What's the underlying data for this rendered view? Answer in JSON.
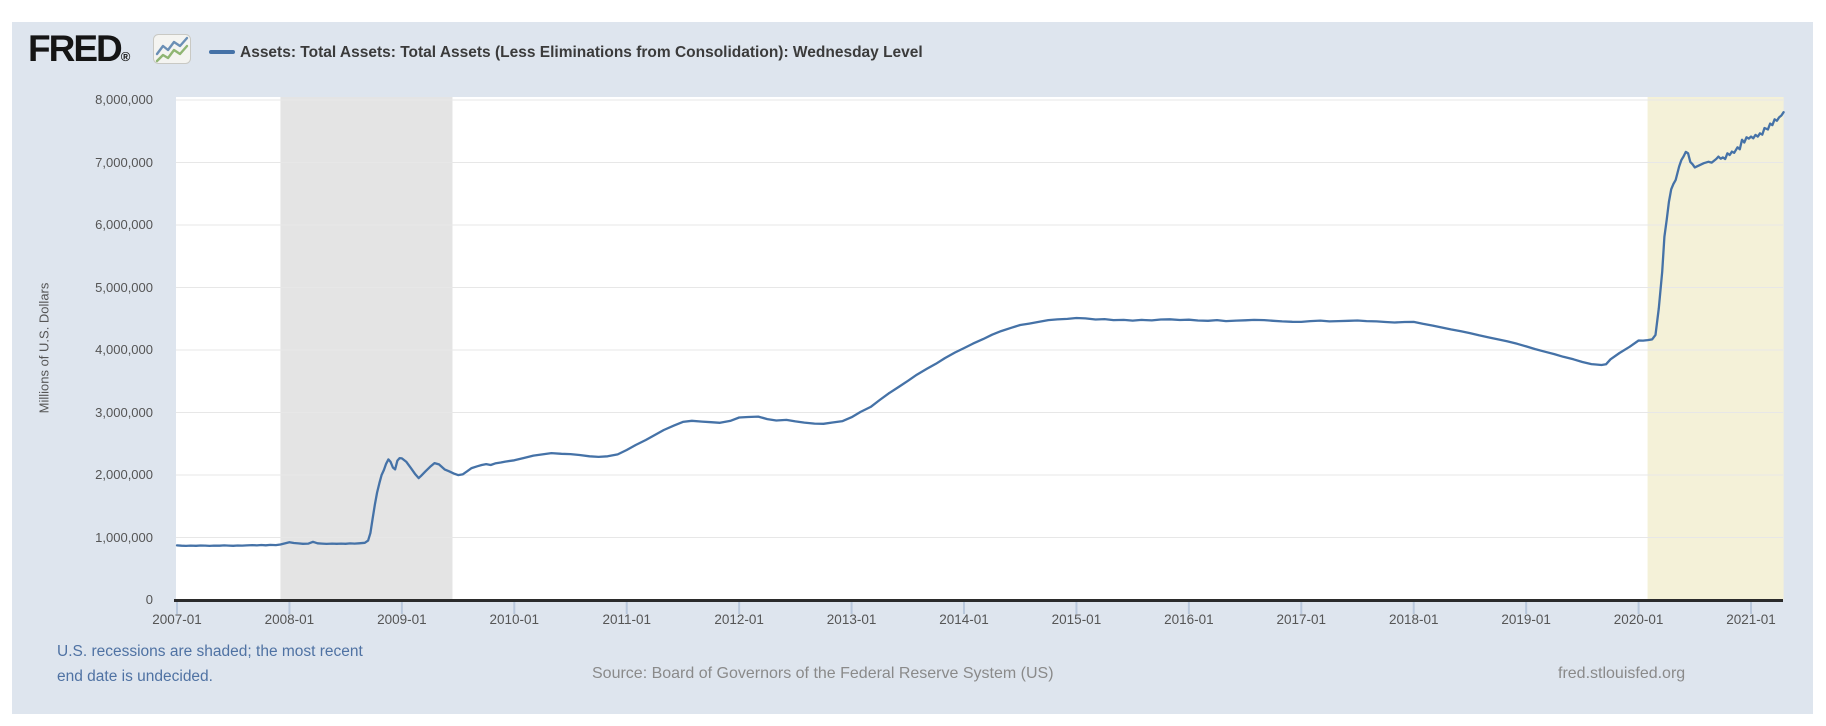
{
  "header": {
    "logo_text": "FRED",
    "logo_mark": "®",
    "legend": {
      "marker": "series-line-swatch",
      "label": "Assets: Total Assets: Total Assets (Less Eliminations from Consolidation): Wednesday Level"
    }
  },
  "footer": {
    "recession_note_line1": "U.S. recessions are shaded; the most recent",
    "recession_note_line2": "end date is undecided.",
    "source": "Source: Board of Governors of the Federal Reserve System (US)",
    "site": "fred.stlouisfed.org"
  },
  "colors": {
    "panel_bg": "#dee5ee",
    "plot_bg": "#ffffff",
    "grid": "#e7e7e7",
    "axis": "#2b2b2b",
    "tick": "#b9c8dc",
    "line": "#4572a7",
    "recession_gray": "#e4e4e4",
    "recession_yellow": "#f4f1d8",
    "note_blue": "#4f72a3"
  },
  "chart_data": {
    "type": "line",
    "title": "Assets: Total Assets: Total Assets (Less Eliminations from Consolidation): Wednesday Level",
    "xlabel": "",
    "ylabel": "Millions of U.S. Dollars",
    "ylim": [
      0,
      8000000
    ],
    "xlim_years": [
      2007.0,
      2021.29
    ],
    "grid": "horizontal",
    "legend_position": "top-left",
    "y_tick_labels": [
      "0",
      "1,000,000",
      "2,000,000",
      "3,000,000",
      "4,000,000",
      "5,000,000",
      "6,000,000",
      "7,000,000",
      "8,000,000"
    ],
    "x_ticks": [
      "2007-01",
      "2008-01",
      "2009-01",
      "2010-01",
      "2011-01",
      "2012-01",
      "2013-01",
      "2014-01",
      "2015-01",
      "2016-01",
      "2017-01",
      "2018-01",
      "2019-01",
      "2020-01",
      "2021-01"
    ],
    "shaded_regions": [
      {
        "name": "recession-2007-2009",
        "from": 2007.92,
        "to": 2009.45,
        "color_key": "recession_gray"
      },
      {
        "name": "recession-2020-undecided",
        "from": 2020.08,
        "to": 2021.29,
        "color_key": "recession_yellow"
      }
    ],
    "series": [
      {
        "name": "Assets: Total Assets: Total Assets (Less Eliminations from Consolidation): Wednesday Level",
        "units": "Millions of U.S. Dollars",
        "color_key": "line",
        "points": [
          [
            2007.0,
            873000
          ],
          [
            2007.04,
            869000
          ],
          [
            2007.08,
            866000
          ],
          [
            2007.12,
            871000
          ],
          [
            2007.17,
            868000
          ],
          [
            2007.21,
            872000
          ],
          [
            2007.25,
            870000
          ],
          [
            2007.29,
            866000
          ],
          [
            2007.33,
            871000
          ],
          [
            2007.38,
            869000
          ],
          [
            2007.42,
            873000
          ],
          [
            2007.46,
            870000
          ],
          [
            2007.5,
            868000
          ],
          [
            2007.54,
            872000
          ],
          [
            2007.58,
            870000
          ],
          [
            2007.62,
            874000
          ],
          [
            2007.67,
            878000
          ],
          [
            2007.71,
            874000
          ],
          [
            2007.75,
            880000
          ],
          [
            2007.79,
            876000
          ],
          [
            2007.83,
            882000
          ],
          [
            2007.88,
            879000
          ],
          [
            2007.92,
            888000
          ],
          [
            2008.0,
            925000
          ],
          [
            2008.04,
            912000
          ],
          [
            2008.08,
            906000
          ],
          [
            2008.12,
            900000
          ],
          [
            2008.17,
            903000
          ],
          [
            2008.21,
            932000
          ],
          [
            2008.25,
            908000
          ],
          [
            2008.29,
            902000
          ],
          [
            2008.33,
            898000
          ],
          [
            2008.38,
            902000
          ],
          [
            2008.42,
            899000
          ],
          [
            2008.46,
            903000
          ],
          [
            2008.5,
            900000
          ],
          [
            2008.54,
            905000
          ],
          [
            2008.58,
            903000
          ],
          [
            2008.62,
            908000
          ],
          [
            2008.67,
            915000
          ],
          [
            2008.7,
            950000
          ],
          [
            2008.72,
            1070000
          ],
          [
            2008.74,
            1300000
          ],
          [
            2008.76,
            1530000
          ],
          [
            2008.78,
            1720000
          ],
          [
            2008.8,
            1870000
          ],
          [
            2008.82,
            2000000
          ],
          [
            2008.84,
            2080000
          ],
          [
            2008.86,
            2180000
          ],
          [
            2008.88,
            2250000
          ],
          [
            2008.9,
            2210000
          ],
          [
            2008.92,
            2120000
          ],
          [
            2008.94,
            2090000
          ],
          [
            2008.96,
            2230000
          ],
          [
            2008.98,
            2270000
          ],
          [
            2009.0,
            2265000
          ],
          [
            2009.04,
            2210000
          ],
          [
            2009.08,
            2110000
          ],
          [
            2009.12,
            2010000
          ],
          [
            2009.15,
            1950000
          ],
          [
            2009.17,
            1985000
          ],
          [
            2009.21,
            2060000
          ],
          [
            2009.25,
            2130000
          ],
          [
            2009.29,
            2190000
          ],
          [
            2009.33,
            2170000
          ],
          [
            2009.38,
            2090000
          ],
          [
            2009.42,
            2060000
          ],
          [
            2009.46,
            2025000
          ],
          [
            2009.5,
            1998000
          ],
          [
            2009.54,
            2010000
          ],
          [
            2009.58,
            2060000
          ],
          [
            2009.62,
            2110000
          ],
          [
            2009.67,
            2140000
          ],
          [
            2009.71,
            2160000
          ],
          [
            2009.75,
            2175000
          ],
          [
            2009.79,
            2160000
          ],
          [
            2009.83,
            2185000
          ],
          [
            2009.88,
            2200000
          ],
          [
            2009.92,
            2215000
          ],
          [
            2010.0,
            2235000
          ],
          [
            2010.08,
            2270000
          ],
          [
            2010.17,
            2310000
          ],
          [
            2010.25,
            2330000
          ],
          [
            2010.33,
            2350000
          ],
          [
            2010.42,
            2340000
          ],
          [
            2010.5,
            2335000
          ],
          [
            2010.58,
            2320000
          ],
          [
            2010.67,
            2300000
          ],
          [
            2010.75,
            2290000
          ],
          [
            2010.83,
            2300000
          ],
          [
            2010.92,
            2330000
          ],
          [
            2011.0,
            2400000
          ],
          [
            2011.08,
            2480000
          ],
          [
            2011.17,
            2560000
          ],
          [
            2011.25,
            2640000
          ],
          [
            2011.33,
            2720000
          ],
          [
            2011.42,
            2790000
          ],
          [
            2011.5,
            2850000
          ],
          [
            2011.58,
            2868000
          ],
          [
            2011.67,
            2855000
          ],
          [
            2011.75,
            2845000
          ],
          [
            2011.83,
            2835000
          ],
          [
            2011.92,
            2865000
          ],
          [
            2012.0,
            2920000
          ],
          [
            2012.08,
            2928000
          ],
          [
            2012.17,
            2935000
          ],
          [
            2012.25,
            2895000
          ],
          [
            2012.33,
            2872000
          ],
          [
            2012.42,
            2882000
          ],
          [
            2012.5,
            2858000
          ],
          [
            2012.58,
            2838000
          ],
          [
            2012.67,
            2822000
          ],
          [
            2012.75,
            2820000
          ],
          [
            2012.83,
            2840000
          ],
          [
            2012.92,
            2862000
          ],
          [
            2013.0,
            2925000
          ],
          [
            2013.08,
            3010000
          ],
          [
            2013.17,
            3090000
          ],
          [
            2013.25,
            3200000
          ],
          [
            2013.33,
            3305000
          ],
          [
            2013.42,
            3410000
          ],
          [
            2013.5,
            3505000
          ],
          [
            2013.58,
            3605000
          ],
          [
            2013.67,
            3700000
          ],
          [
            2013.75,
            3780000
          ],
          [
            2013.83,
            3870000
          ],
          [
            2013.92,
            3960000
          ],
          [
            2014.0,
            4030000
          ],
          [
            2014.08,
            4102000
          ],
          [
            2014.17,
            4175000
          ],
          [
            2014.25,
            4245000
          ],
          [
            2014.33,
            4302000
          ],
          [
            2014.42,
            4355000
          ],
          [
            2014.5,
            4400000
          ],
          [
            2014.58,
            4422000
          ],
          [
            2014.67,
            4452000
          ],
          [
            2014.75,
            4478000
          ],
          [
            2014.83,
            4490000
          ],
          [
            2014.92,
            4498000
          ],
          [
            2015.0,
            4512000
          ],
          [
            2015.08,
            4505000
          ],
          [
            2015.17,
            4488000
          ],
          [
            2015.25,
            4495000
          ],
          [
            2015.33,
            4478000
          ],
          [
            2015.42,
            4482000
          ],
          [
            2015.5,
            4470000
          ],
          [
            2015.58,
            4482000
          ],
          [
            2015.67,
            4474000
          ],
          [
            2015.75,
            4488000
          ],
          [
            2015.83,
            4492000
          ],
          [
            2015.92,
            4480000
          ],
          [
            2016.0,
            4485000
          ],
          [
            2016.08,
            4472000
          ],
          [
            2016.17,
            4468000
          ],
          [
            2016.25,
            4478000
          ],
          [
            2016.33,
            4462000
          ],
          [
            2016.42,
            4470000
          ],
          [
            2016.5,
            4475000
          ],
          [
            2016.58,
            4482000
          ],
          [
            2016.67,
            4478000
          ],
          [
            2016.75,
            4468000
          ],
          [
            2016.83,
            4458000
          ],
          [
            2016.92,
            4452000
          ],
          [
            2017.0,
            4450000
          ],
          [
            2017.08,
            4462000
          ],
          [
            2017.17,
            4470000
          ],
          [
            2017.25,
            4458000
          ],
          [
            2017.33,
            4462000
          ],
          [
            2017.42,
            4468000
          ],
          [
            2017.5,
            4472000
          ],
          [
            2017.58,
            4462000
          ],
          [
            2017.67,
            4458000
          ],
          [
            2017.75,
            4448000
          ],
          [
            2017.83,
            4440000
          ],
          [
            2017.92,
            4448000
          ],
          [
            2018.0,
            4450000
          ],
          [
            2018.08,
            4420000
          ],
          [
            2018.17,
            4390000
          ],
          [
            2018.25,
            4360000
          ],
          [
            2018.33,
            4330000
          ],
          [
            2018.42,
            4300000
          ],
          [
            2018.5,
            4270000
          ],
          [
            2018.58,
            4235000
          ],
          [
            2018.67,
            4200000
          ],
          [
            2018.75,
            4170000
          ],
          [
            2018.83,
            4140000
          ],
          [
            2018.92,
            4100000
          ],
          [
            2019.0,
            4058000
          ],
          [
            2019.08,
            4015000
          ],
          [
            2019.17,
            3972000
          ],
          [
            2019.25,
            3935000
          ],
          [
            2019.33,
            3892000
          ],
          [
            2019.42,
            3852000
          ],
          [
            2019.5,
            3808000
          ],
          [
            2019.58,
            3775000
          ],
          [
            2019.62,
            3768000
          ],
          [
            2019.67,
            3760000
          ],
          [
            2019.71,
            3772000
          ],
          [
            2019.75,
            3852000
          ],
          [
            2019.83,
            3952000
          ],
          [
            2019.92,
            4052000
          ],
          [
            2020.0,
            4152000
          ],
          [
            2020.04,
            4150000
          ],
          [
            2020.08,
            4158000
          ],
          [
            2020.12,
            4170000
          ],
          [
            2020.15,
            4242000
          ],
          [
            2020.18,
            4668000
          ],
          [
            2020.21,
            5252000
          ],
          [
            2020.23,
            5812000
          ],
          [
            2020.25,
            6082000
          ],
          [
            2020.27,
            6368000
          ],
          [
            2020.29,
            6572000
          ],
          [
            2020.31,
            6656000
          ],
          [
            2020.33,
            6721000
          ],
          [
            2020.36,
            6934000
          ],
          [
            2020.38,
            7037000
          ],
          [
            2020.4,
            7097000
          ],
          [
            2020.42,
            7169000
          ],
          [
            2020.44,
            7145000
          ],
          [
            2020.46,
            7010000
          ],
          [
            2020.48,
            6972000
          ],
          [
            2020.5,
            6921000
          ],
          [
            2020.54,
            6956000
          ],
          [
            2020.58,
            6989000
          ],
          [
            2020.62,
            7012000
          ],
          [
            2020.65,
            6998000
          ],
          [
            2020.69,
            7056000
          ],
          [
            2020.71,
            7094000
          ],
          [
            2020.73,
            7061000
          ],
          [
            2020.75,
            7082000
          ],
          [
            2020.77,
            7056000
          ],
          [
            2020.79,
            7148000
          ],
          [
            2020.81,
            7120000
          ],
          [
            2020.83,
            7175000
          ],
          [
            2020.85,
            7155000
          ],
          [
            2020.88,
            7243000
          ],
          [
            2020.9,
            7211000
          ],
          [
            2020.92,
            7363000
          ],
          [
            2020.94,
            7320000
          ],
          [
            2020.96,
            7404000
          ],
          [
            2020.98,
            7383000
          ],
          [
            2021.0,
            7414000
          ],
          [
            2021.02,
            7388000
          ],
          [
            2021.04,
            7442000
          ],
          [
            2021.06,
            7415000
          ],
          [
            2021.08,
            7468000
          ],
          [
            2021.1,
            7445000
          ],
          [
            2021.12,
            7552000
          ],
          [
            2021.15,
            7528000
          ],
          [
            2021.17,
            7622000
          ],
          [
            2021.19,
            7598000
          ],
          [
            2021.21,
            7691000
          ],
          [
            2021.23,
            7668000
          ],
          [
            2021.25,
            7722000
          ],
          [
            2021.27,
            7752000
          ],
          [
            2021.29,
            7805000
          ]
        ]
      }
    ]
  }
}
